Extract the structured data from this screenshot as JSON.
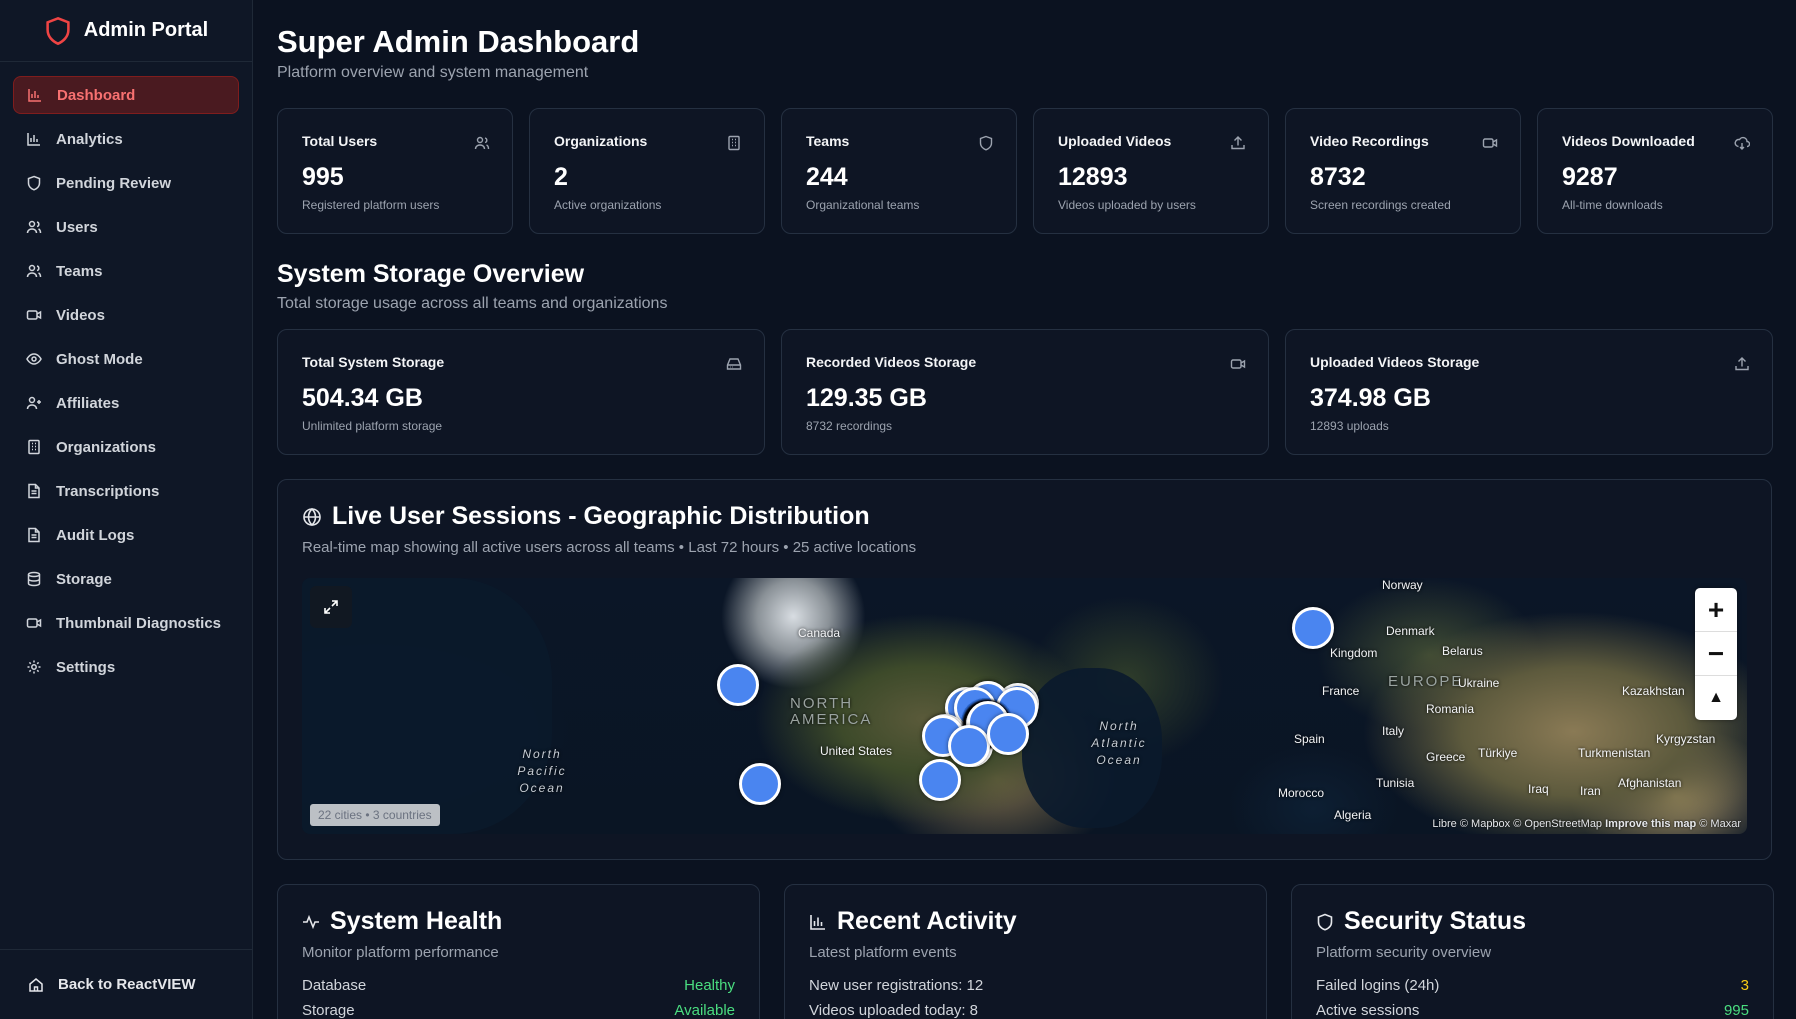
{
  "sidebar": {
    "brand": "Admin Portal",
    "items": [
      {
        "label": "Dashboard",
        "icon": "bar-chart-icon"
      },
      {
        "label": "Analytics",
        "icon": "bar-chart-icon"
      },
      {
        "label": "Pending Review",
        "icon": "shield-icon"
      },
      {
        "label": "Users",
        "icon": "users-icon"
      },
      {
        "label": "Teams",
        "icon": "users-icon"
      },
      {
        "label": "Videos",
        "icon": "video-icon"
      },
      {
        "label": "Ghost Mode",
        "icon": "eye-icon"
      },
      {
        "label": "Affiliates",
        "icon": "user-plus-icon"
      },
      {
        "label": "Organizations",
        "icon": "building-icon"
      },
      {
        "label": "Transcriptions",
        "icon": "file-text-icon"
      },
      {
        "label": "Audit Logs",
        "icon": "file-text-icon"
      },
      {
        "label": "Storage",
        "icon": "database-icon"
      },
      {
        "label": "Thumbnail Diagnostics",
        "icon": "video-icon"
      },
      {
        "label": "Settings",
        "icon": "gear-icon"
      }
    ],
    "back_label": "Back to ReactVIEW"
  },
  "header": {
    "title": "Super Admin Dashboard",
    "subtitle": "Platform overview and system management"
  },
  "stats": [
    {
      "label": "Total Users",
      "value": "995",
      "desc": "Registered platform users",
      "icon": "users-icon"
    },
    {
      "label": "Organizations",
      "value": "2",
      "desc": "Active organizations",
      "icon": "building-icon"
    },
    {
      "label": "Teams",
      "value": "244",
      "desc": "Organizational teams",
      "icon": "shield-icon"
    },
    {
      "label": "Uploaded Videos",
      "value": "12893",
      "desc": "Videos uploaded by users",
      "icon": "upload-icon"
    },
    {
      "label": "Video Recordings",
      "value": "8732",
      "desc": "Screen recordings created",
      "icon": "video-icon"
    },
    {
      "label": "Videos Downloaded",
      "value": "9287",
      "desc": "All-time downloads",
      "icon": "cloud-download-icon"
    }
  ],
  "storage": {
    "title": "System Storage Overview",
    "subtitle": "Total storage usage across all teams and organizations",
    "cards": [
      {
        "label": "Total System Storage",
        "value": "504.34 GB",
        "desc": "Unlimited platform storage",
        "icon": "hard-drive-icon"
      },
      {
        "label": "Recorded Videos Storage",
        "value": "129.35 GB",
        "desc": "8732 recordings",
        "icon": "video-icon"
      },
      {
        "label": "Uploaded Videos Storage",
        "value": "374.98 GB",
        "desc": "12893 uploads",
        "icon": "upload-icon"
      }
    ]
  },
  "map": {
    "title": "Live User Sessions - Geographic Distribution",
    "subtitle": "Real-time map showing all active users across all teams • Last 72 hours • 25 active locations",
    "badge": "22 cities • 3 countries",
    "attribution_prefix": "Libre",
    "attribution_mapbox": "© Mapbox",
    "attribution_osm": "© OpenStreetMap",
    "attribution_improve": "Improve this map",
    "attribution_maxar": "© Maxar",
    "zoom_in": "+",
    "zoom_out": "−",
    "compass": "▲",
    "labels": {
      "canada": "Canada",
      "north_america": "NORTH AMERICA",
      "united_states": "United States",
      "north_pacific": "North Pacific Ocean",
      "north_atlantic": "North Atlantic Ocean",
      "norway": "Norway",
      "denmark": "Denmark",
      "kingdom": "Kingdom",
      "belarus": "Belarus",
      "europe": "EUROPE",
      "ukraine": "Ukraine",
      "france": "France",
      "romania": "Romania",
      "kazakhstan": "Kazakhstan",
      "italy": "Italy",
      "spain": "Spain",
      "greece": "Greece",
      "turkiye": "Türkiye",
      "turkmenistan": "Turkmenistan",
      "kyrgyzstan": "Kyrgyzstan",
      "morocco": "Morocco",
      "tunisia": "Tunisia",
      "iraq": "Iraq",
      "iran": "Iran",
      "afghanistan": "Afghanistan",
      "algeria": "Algeria"
    }
  },
  "system_health": {
    "title": "System Health",
    "subtitle": "Monitor platform performance",
    "rows": [
      {
        "label": "Database",
        "value": "Healthy"
      },
      {
        "label": "Storage",
        "value": "Available"
      }
    ]
  },
  "recent_activity": {
    "title": "Recent Activity",
    "subtitle": "Latest platform events",
    "rows": [
      {
        "label": "New user registrations: 12",
        "value": ""
      },
      {
        "label": "Videos uploaded today: 8",
        "value": ""
      }
    ]
  },
  "security_status": {
    "title": "Security Status",
    "subtitle": "Platform security overview",
    "rows": [
      {
        "label": "Failed logins (24h)",
        "value": "3"
      },
      {
        "label": "Active sessions",
        "value": "995"
      }
    ]
  },
  "colors": {
    "accent": "#f87171",
    "background": "#0b1220",
    "pin": "#4a85f0",
    "healthy": "#4ade80",
    "warning": "#facc15"
  }
}
